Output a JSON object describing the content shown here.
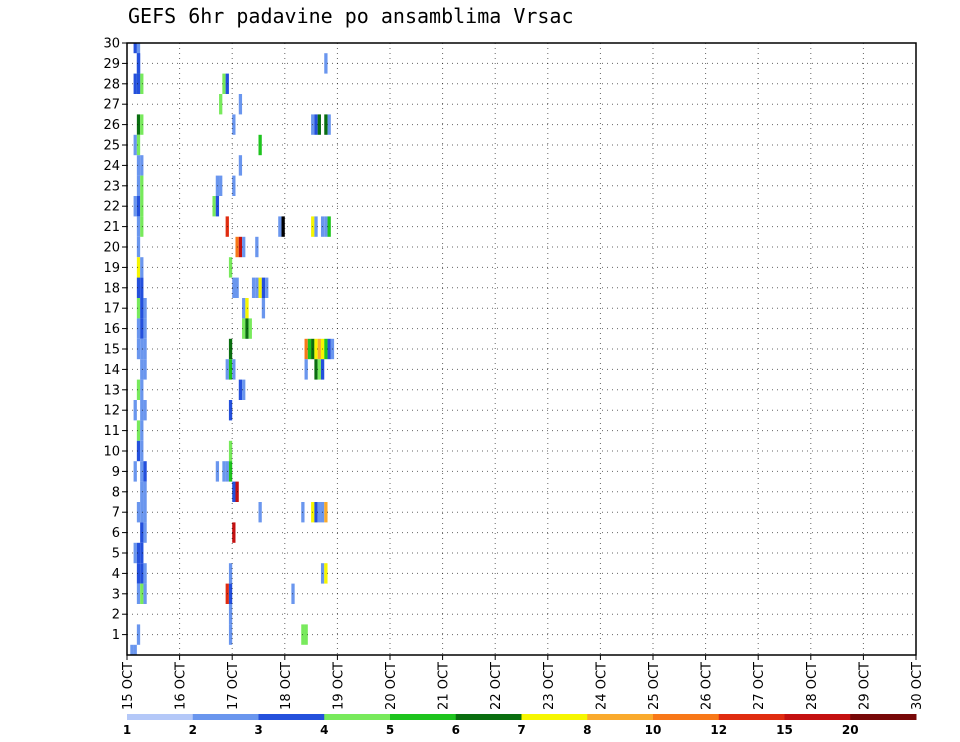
{
  "chart_data": {
    "type": "heatmap",
    "title": "GEFS 6hr padavine po ansamblima Vrsac",
    "x_tick_labels": [
      "15 OCT",
      "16 OCT",
      "17 OCT",
      "18 OCT",
      "19 OCT",
      "20 OCT",
      "21 OCT",
      "22 OCT",
      "23 OCT",
      "24 OCT",
      "25 OCT",
      "26 OCT",
      "27 OCT",
      "28 OCT",
      "29 OCT",
      "30 OCT"
    ],
    "y_tick_labels": [
      "1",
      "2",
      "3",
      "4",
      "5",
      "6",
      "7",
      "8",
      "9",
      "10",
      "11",
      "12",
      "13",
      "14",
      "15",
      "16",
      "17",
      "18",
      "19",
      "20",
      "21",
      "22",
      "23",
      "24",
      "25",
      "26",
      "27",
      "28",
      "29",
      "30"
    ],
    "x_unit": "6-hour step from 15 OCT 00Z",
    "xlim": [
      0,
      60
    ],
    "ylim": [
      0,
      30
    ],
    "grid": true,
    "colorbar": {
      "labels": [
        "1",
        "2",
        "3",
        "4",
        "5",
        "6",
        "7",
        "8",
        "10",
        "12",
        "15",
        "20"
      ],
      "colors": [
        "#b4c8f8",
        "#6a96ee",
        "#2450dc",
        "#78ea5c",
        "#1ec41e",
        "#0a6e10",
        "#f6f600",
        "#faaa2c",
        "#f87818",
        "#e02c10",
        "#c41010",
        "#780808"
      ]
    },
    "cells": [
      [
        1,
        0,
        1
      ],
      [
        2,
        0,
        1
      ],
      [
        3,
        30,
        1
      ],
      [
        2,
        30,
        2
      ],
      [
        3,
        29,
        2
      ],
      [
        3,
        28,
        3
      ],
      [
        4,
        28,
        3
      ],
      [
        2,
        28,
        2
      ],
      [
        3,
        28,
        2
      ],
      [
        3,
        29,
        2
      ],
      [
        3,
        26,
        5
      ],
      [
        4,
        26,
        3
      ],
      [
        2,
        25,
        1
      ],
      [
        3,
        25,
        3
      ],
      [
        3,
        24,
        1
      ],
      [
        4,
        24,
        1
      ],
      [
        3,
        23,
        1
      ],
      [
        4,
        23,
        3
      ],
      [
        2,
        22,
        1
      ],
      [
        3,
        22,
        2
      ],
      [
        4,
        22,
        3
      ],
      [
        3,
        21,
        1
      ],
      [
        4,
        21,
        3
      ],
      [
        3,
        20,
        1
      ],
      [
        3,
        19,
        6
      ],
      [
        4,
        19,
        1
      ],
      [
        3,
        18,
        2
      ],
      [
        4,
        18,
        2
      ],
      [
        3,
        17,
        3
      ],
      [
        4,
        17,
        2
      ],
      [
        5,
        17,
        1
      ],
      [
        3,
        16,
        1
      ],
      [
        4,
        16,
        2
      ],
      [
        5,
        16,
        1
      ],
      [
        3,
        15,
        1
      ],
      [
        4,
        15,
        1
      ],
      [
        5,
        15,
        1
      ],
      [
        4,
        14,
        1
      ],
      [
        5,
        14,
        1
      ],
      [
        3,
        13,
        3
      ],
      [
        4,
        13,
        1
      ],
      [
        2,
        12,
        1
      ],
      [
        4,
        12,
        1
      ],
      [
        5,
        12,
        1
      ],
      [
        3,
        11,
        3
      ],
      [
        4,
        11,
        1
      ],
      [
        3,
        10,
        2
      ],
      [
        4,
        10,
        1
      ],
      [
        2,
        9,
        1
      ],
      [
        4,
        9,
        1
      ],
      [
        5,
        9,
        2
      ],
      [
        4,
        8,
        1
      ],
      [
        5,
        8,
        1
      ],
      [
        3,
        7,
        1
      ],
      [
        4,
        7,
        1
      ],
      [
        5,
        7,
        1
      ],
      [
        4,
        6,
        2
      ],
      [
        5,
        6,
        1
      ],
      [
        2,
        5,
        1
      ],
      [
        3,
        5,
        2
      ],
      [
        4,
        5,
        2
      ],
      [
        3,
        4,
        2
      ],
      [
        4,
        4,
        2
      ],
      [
        5,
        4,
        1
      ],
      [
        3,
        3,
        1
      ],
      [
        4,
        3,
        3
      ],
      [
        5,
        3,
        1
      ],
      [
        3,
        1,
        1
      ],
      [
        29,
        28,
        3
      ],
      [
        30,
        28,
        2
      ],
      [
        28,
        27,
        3
      ],
      [
        34,
        27,
        1
      ],
      [
        32,
        26,
        1
      ],
      [
        34,
        24,
        1
      ],
      [
        27,
        23,
        1
      ],
      [
        28,
        23,
        1
      ],
      [
        32,
        23,
        1
      ],
      [
        26,
        22,
        3
      ],
      [
        27,
        22,
        2
      ],
      [
        30,
        21,
        9
      ],
      [
        33,
        20,
        8
      ],
      [
        34,
        20,
        10
      ],
      [
        35,
        20,
        1
      ],
      [
        31,
        19,
        3
      ],
      [
        32,
        18,
        1
      ],
      [
        33,
        18,
        1
      ],
      [
        35,
        17,
        1
      ],
      [
        36,
        17,
        6
      ],
      [
        35,
        16,
        3
      ],
      [
        36,
        16,
        5
      ],
      [
        37,
        16,
        3
      ],
      [
        31,
        15,
        5
      ],
      [
        30,
        14,
        1
      ],
      [
        31,
        14,
        4
      ],
      [
        32,
        14,
        1
      ],
      [
        34,
        13,
        2
      ],
      [
        35,
        13,
        1
      ],
      [
        31,
        12,
        2
      ],
      [
        31,
        10,
        3
      ],
      [
        27,
        9,
        1
      ],
      [
        29,
        9,
        1
      ],
      [
        30,
        9,
        1
      ],
      [
        31,
        9,
        4
      ],
      [
        32,
        8,
        2
      ],
      [
        33,
        8,
        10
      ],
      [
        32,
        6,
        10
      ],
      [
        31,
        4,
        1
      ],
      [
        30,
        3,
        9
      ],
      [
        31,
        3,
        2
      ],
      [
        31,
        2,
        1
      ],
      [
        31,
        1,
        1
      ],
      [
        40,
        25,
        4
      ],
      [
        39,
        20,
        1
      ],
      [
        38,
        18,
        1
      ],
      [
        39,
        18,
        1
      ],
      [
        40,
        18,
        6
      ],
      [
        41,
        18,
        2
      ],
      [
        42,
        18,
        1
      ],
      [
        41,
        17,
        1
      ],
      [
        40,
        7,
        1
      ],
      [
        46,
        21,
        1
      ],
      [
        47,
        21,
        12
      ],
      [
        50,
        3,
        1
      ],
      [
        53,
        7,
        1
      ],
      [
        53,
        1,
        3
      ],
      [
        54,
        1,
        3
      ],
      [
        56,
        26,
        1
      ],
      [
        57,
        26,
        2
      ],
      [
        58,
        26,
        5
      ],
      [
        60,
        26,
        5
      ],
      [
        61,
        26,
        1
      ],
      [
        60,
        29,
        1
      ],
      [
        56,
        21,
        6
      ],
      [
        57,
        21,
        1
      ],
      [
        59,
        21,
        1
      ],
      [
        60,
        21,
        1
      ],
      [
        61,
        21,
        4
      ],
      [
        54,
        15,
        8
      ],
      [
        55,
        15,
        4
      ],
      [
        56,
        15,
        5
      ],
      [
        57,
        15,
        6
      ],
      [
        58,
        15,
        7
      ],
      [
        59,
        15,
        6
      ],
      [
        60,
        15,
        4
      ],
      [
        61,
        15,
        2
      ],
      [
        62,
        15,
        1
      ],
      [
        54,
        14,
        1
      ],
      [
        57,
        14,
        5
      ],
      [
        58,
        14,
        3
      ],
      [
        59,
        14,
        2
      ],
      [
        56,
        7,
        6
      ],
      [
        57,
        7,
        2
      ],
      [
        58,
        7,
        1
      ],
      [
        59,
        7,
        1
      ],
      [
        60,
        7,
        7
      ],
      [
        59,
        4,
        1
      ],
      [
        60,
        4,
        6
      ]
    ]
  }
}
